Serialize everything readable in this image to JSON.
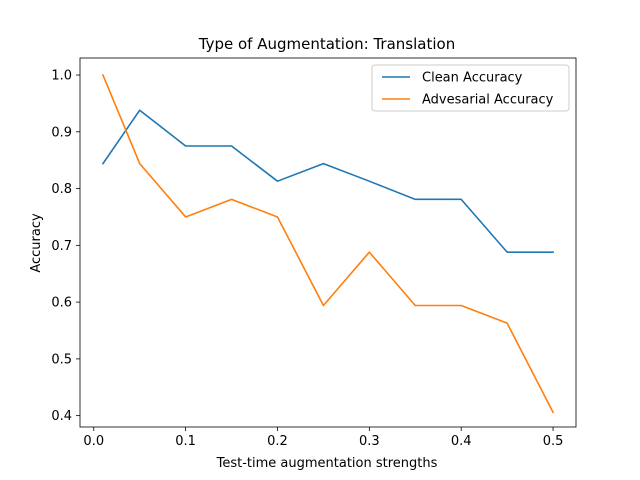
{
  "chart_data": {
    "type": "line",
    "title": "Type of Augmentation: Translation",
    "xlabel": "Test-time augmentation strengths",
    "ylabel": "Accuracy",
    "x": [
      0.01,
      0.05,
      0.1,
      0.15,
      0.2,
      0.25,
      0.3,
      0.35,
      0.4,
      0.45,
      0.5
    ],
    "series": [
      {
        "name": "Clean Accuracy",
        "color": "#1f77b4",
        "values": [
          0.844,
          0.938,
          0.875,
          0.875,
          0.813,
          0.844,
          0.813,
          0.781,
          0.781,
          0.688,
          0.688
        ]
      },
      {
        "name": "Advesarial Accuracy",
        "color": "#ff7f0e",
        "values": [
          1.0,
          0.844,
          0.75,
          0.781,
          0.75,
          0.594,
          0.688,
          0.594,
          0.594,
          0.563,
          0.406
        ]
      }
    ],
    "xlim": [
      -0.015,
      0.525
    ],
    "ylim": [
      0.38,
      1.03
    ],
    "xticks": [
      "0.0",
      "0.1",
      "0.2",
      "0.3",
      "0.4",
      "0.5"
    ],
    "yticks": [
      "0.4",
      "0.5",
      "0.6",
      "0.7",
      "0.8",
      "0.9",
      "1.0"
    ],
    "grid": false,
    "legend_position": "top-right"
  }
}
